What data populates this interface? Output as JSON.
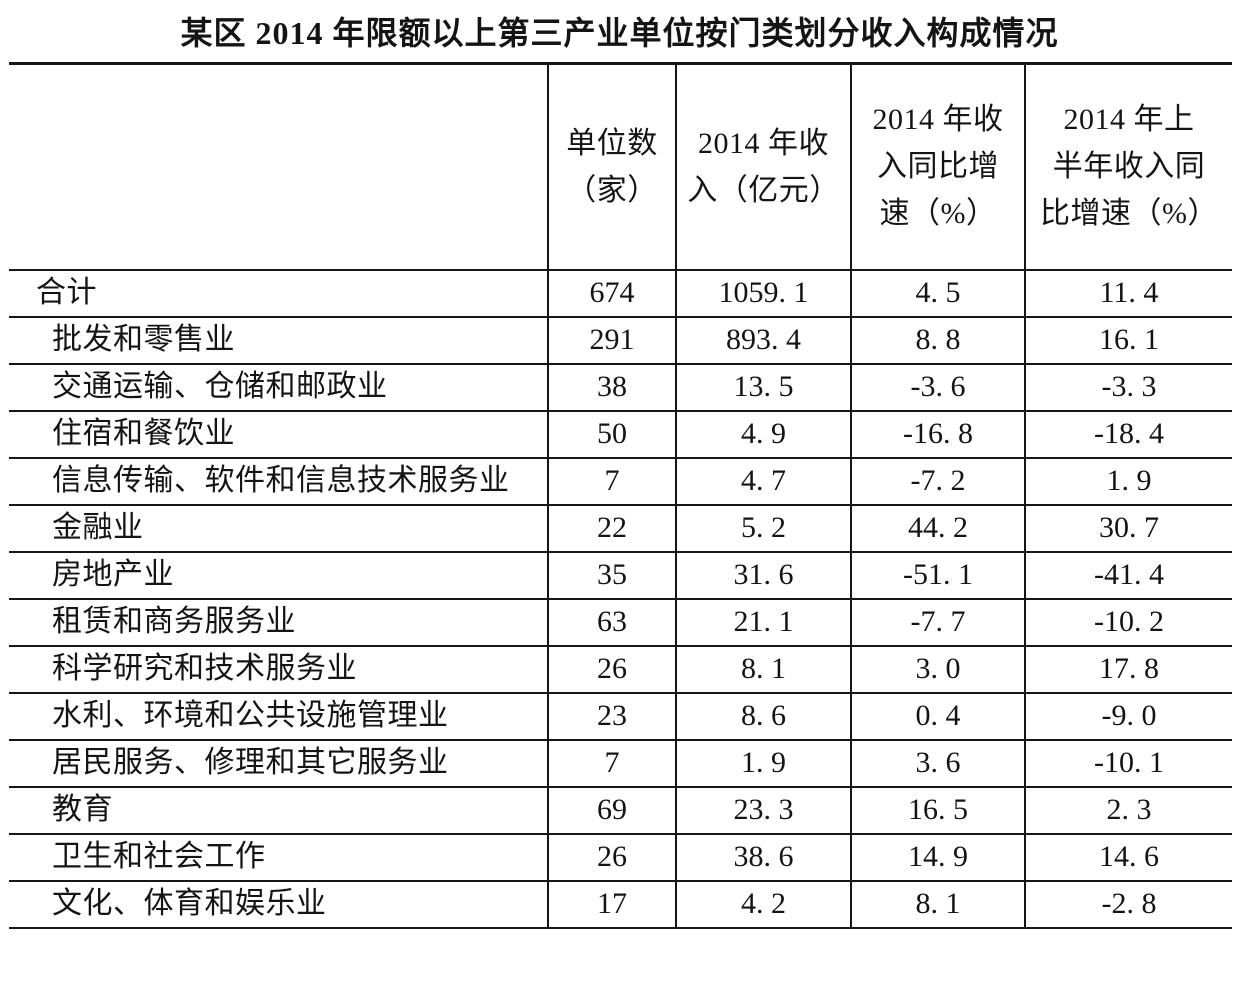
{
  "page": {
    "background_color": "#ffffff",
    "text_color": "#141414",
    "rule_color": "#161616"
  },
  "title": "某区 2014 年限额以上第三产业单位按门类划分收入构成情况",
  "table": {
    "columns": [
      {
        "key": "industry",
        "lines": [
          ""
        ]
      },
      {
        "key": "units",
        "lines": [
          "单位数",
          "（家）"
        ]
      },
      {
        "key": "income",
        "lines": [
          "2014 年收",
          "入（亿元）"
        ]
      },
      {
        "key": "growth",
        "lines": [
          "2014 年收",
          "入同比增",
          "速（%）"
        ]
      },
      {
        "key": "h1_growth",
        "lines": [
          "2014 年上",
          "半年收入同",
          "比增速（%）"
        ]
      }
    ],
    "rows": [
      {
        "label": "合计",
        "total": true,
        "values": [
          "674",
          "1059.1",
          "4.5",
          "11.4"
        ]
      },
      {
        "label": "批发和零售业",
        "total": false,
        "values": [
          "291",
          "893.4",
          "8.8",
          "16.1"
        ]
      },
      {
        "label": "交通运输、仓储和邮政业",
        "total": false,
        "values": [
          "38",
          "13.5",
          "-3.6",
          "-3.3"
        ]
      },
      {
        "label": "住宿和餐饮业",
        "total": false,
        "values": [
          "50",
          "4.9",
          "-16.8",
          "-18.4"
        ]
      },
      {
        "label": "信息传输、软件和信息技术服务业",
        "total": false,
        "values": [
          "7",
          "4.7",
          "-7.2",
          "1.9"
        ]
      },
      {
        "label": "金融业",
        "total": false,
        "values": [
          "22",
          "5.2",
          "44.2",
          "30.7"
        ]
      },
      {
        "label": "房地产业",
        "total": false,
        "values": [
          "35",
          "31.6",
          "-51.1",
          "-41.4"
        ]
      },
      {
        "label": "租赁和商务服务业",
        "total": false,
        "values": [
          "63",
          "21.1",
          "-7.7",
          "-10.2"
        ]
      },
      {
        "label": "科学研究和技术服务业",
        "total": false,
        "values": [
          "26",
          "8.1",
          "3.0",
          "17.8"
        ]
      },
      {
        "label": "水利、环境和公共设施管理业",
        "total": false,
        "values": [
          "23",
          "8.6",
          "0.4",
          "-9.0"
        ]
      },
      {
        "label": "居民服务、修理和其它服务业",
        "total": false,
        "values": [
          "7",
          "1.9",
          "3.6",
          "-10.1"
        ]
      },
      {
        "label": "教育",
        "total": false,
        "values": [
          "69",
          "23.3",
          "16.5",
          "2.3"
        ]
      },
      {
        "label": "卫生和社会工作",
        "total": false,
        "values": [
          "26",
          "38.6",
          "14.9",
          "14.6"
        ]
      },
      {
        "label": "文化、体育和娱乐业",
        "total": false,
        "values": [
          "17",
          "4.2",
          "8.1",
          "-2.8"
        ]
      }
    ]
  }
}
